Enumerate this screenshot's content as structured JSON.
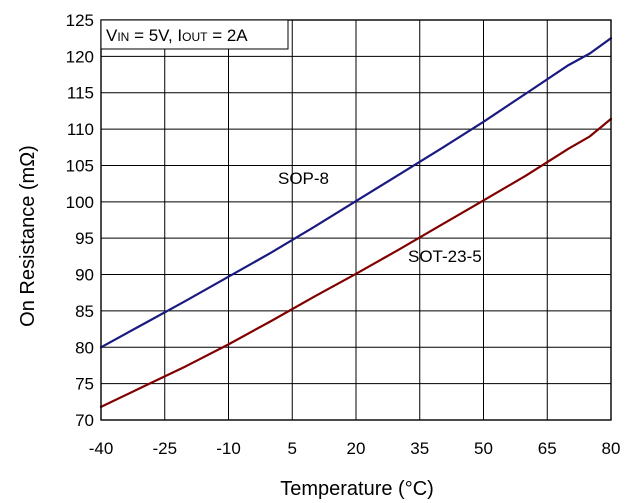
{
  "chart_data": {
    "type": "line",
    "title": "",
    "xlabel": "Temperature (°C)",
    "ylabel": "On Resistance (mΩ)",
    "xlim": [
      -40,
      80
    ],
    "ylim": [
      70,
      125
    ],
    "xticks": [
      -40,
      -25,
      -10,
      5,
      20,
      35,
      50,
      65,
      80
    ],
    "yticks": [
      70,
      75,
      80,
      85,
      90,
      95,
      100,
      105,
      110,
      115,
      120,
      125
    ],
    "grid": true,
    "annotation": {
      "v_main": "V",
      "v_sub": "IN",
      "v_value": " = 5V, I",
      "i_sub": "OUT",
      "i_value": " = 2A"
    },
    "series": [
      {
        "name": "SOP-8",
        "color": "#1a1a80",
        "x": [
          -40,
          -30,
          -20,
          -10,
          0,
          10,
          20,
          30,
          40,
          50,
          60,
          70,
          75,
          80
        ],
        "y": [
          80.0,
          83.2,
          86.4,
          89.7,
          93.0,
          96.5,
          100.1,
          103.7,
          107.3,
          111.0,
          114.9,
          118.8,
          120.4,
          122.5
        ]
      },
      {
        "name": "SOT-23-5",
        "color": "#800000",
        "x": [
          -40,
          -30,
          -20,
          -10,
          0,
          10,
          20,
          30,
          40,
          50,
          60,
          70,
          75,
          80
        ],
        "y": [
          71.8,
          74.6,
          77.4,
          80.4,
          83.6,
          86.9,
          90.1,
          93.4,
          96.8,
          100.2,
          103.6,
          107.3,
          109.0,
          111.4
        ]
      }
    ]
  }
}
